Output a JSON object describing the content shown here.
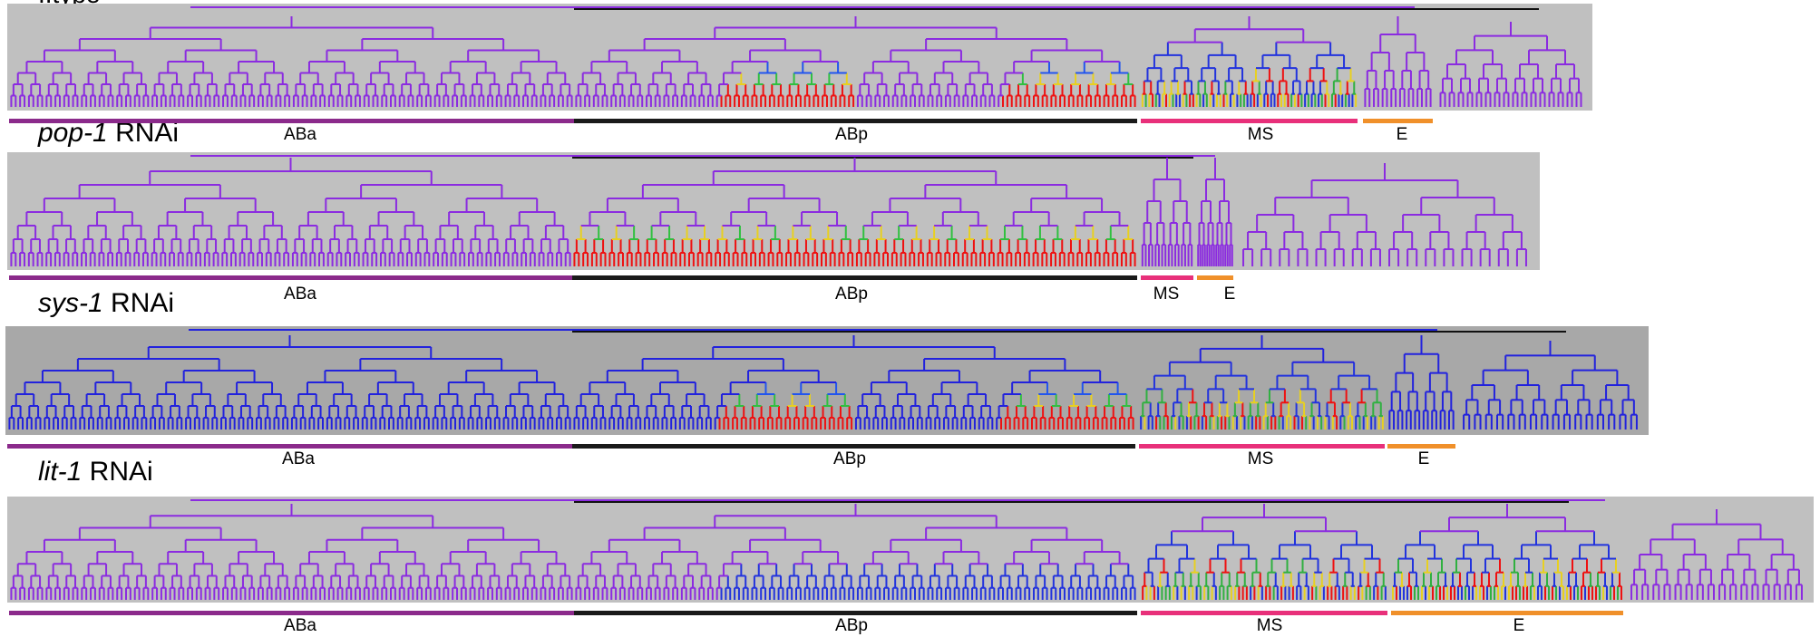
{
  "figure": {
    "top_title_fragment": "..type",
    "panels": [
      {
        "id": "wild-type",
        "title_gene": "",
        "title_suffix": "",
        "background": "#c0c0c0",
        "base_color": "#8b2be0",
        "lineages": [
          {
            "name": "ABa",
            "color": "#8b2a8b",
            "leaves": 128,
            "mode": "base"
          },
          {
            "name": "ABp",
            "color": "#1a1a1a",
            "leaves": 128,
            "mode": "abp-two-blocks"
          },
          {
            "name": "MS",
            "color": "#e8307a",
            "leaves": 48,
            "mode": "mixed-green"
          },
          {
            "name": "E",
            "color": "#f0902a",
            "leaves": 20,
            "mode": "base"
          }
        ]
      },
      {
        "id": "pop-1",
        "title_gene": "pop-1",
        "title_suffix": " RNAi",
        "background": "#c0c0c0",
        "base_color": "#8b2be0",
        "lineages": [
          {
            "name": "ABa",
            "color": "#8b2a8b",
            "leaves": 128,
            "mode": "base"
          },
          {
            "name": "ABp",
            "color": "#1a1a1a",
            "leaves": 128,
            "mode": "all-red"
          },
          {
            "name": "MS",
            "color": "#e8307a",
            "leaves": 12,
            "mode": "base"
          },
          {
            "name": "E",
            "color": "#f0902a",
            "leaves": 16,
            "mode": "base"
          }
        ]
      },
      {
        "id": "sys-1",
        "title_gene": "sys-1",
        "title_suffix": " RNAi",
        "background": "#a8a8a8",
        "base_color": "#2222dd",
        "lineages": [
          {
            "name": "ABa",
            "color": "#8b2a8b",
            "leaves": 128,
            "mode": "base"
          },
          {
            "name": "ABp",
            "color": "#1a1a1a",
            "leaves": 128,
            "mode": "abp-two-blocks"
          },
          {
            "name": "MS",
            "color": "#e8307a",
            "leaves": 56,
            "mode": "mixed-green"
          },
          {
            "name": "E",
            "color": "#f0902a",
            "leaves": 16,
            "mode": "base"
          }
        ]
      },
      {
        "id": "lit-1",
        "title_gene": "lit-1",
        "title_suffix": " RNAi",
        "background": "#c0c0c0",
        "base_color": "#8b2be0",
        "lineages": [
          {
            "name": "ABa",
            "color": "#8b2a8b",
            "leaves": 128,
            "mode": "base"
          },
          {
            "name": "ABp",
            "color": "#1a1a1a",
            "leaves": 128,
            "mode": "blue-half"
          },
          {
            "name": "MS",
            "color": "#e8307a",
            "leaves": 56,
            "mode": "mixed-green"
          },
          {
            "name": "E",
            "color": "#f0902a",
            "leaves": 52,
            "mode": "mixed-green"
          }
        ]
      }
    ]
  }
}
